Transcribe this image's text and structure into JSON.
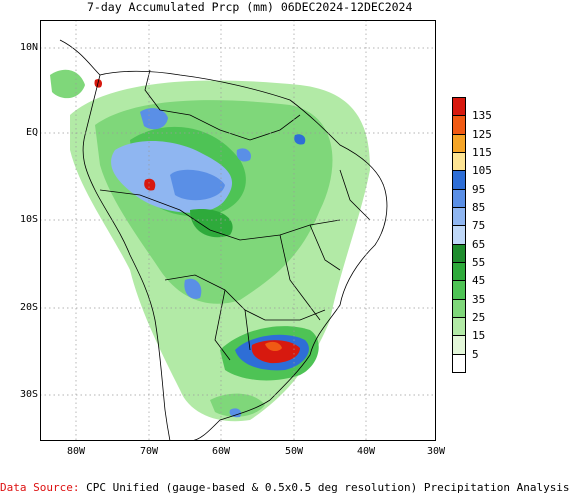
{
  "title": "7-day Accumulated Prcp (mm) 06DEC2024-12DEC2024",
  "map": {
    "lat_labels": [
      "10N",
      "EQ",
      "10S",
      "20S",
      "30S"
    ],
    "lon_labels": [
      "80W",
      "70W",
      "60W",
      "50W",
      "40W",
      "30W"
    ]
  },
  "legend": {
    "items": [
      {
        "label": "135",
        "color": "#d7190f"
      },
      {
        "label": "125",
        "color": "#f05a14"
      },
      {
        "label": "115",
        "color": "#f5a528"
      },
      {
        "label": "105",
        "color": "#fde494"
      },
      {
        "label": "95",
        "color": "#2e6ed6"
      },
      {
        "label": "85",
        "color": "#5a8fe6"
      },
      {
        "label": "75",
        "color": "#8fb6f1"
      },
      {
        "label": "65",
        "color": "#bfd8f8"
      },
      {
        "label": "55",
        "color": "#1e8c2d"
      },
      {
        "label": "45",
        "color": "#2eaa3b"
      },
      {
        "label": "35",
        "color": "#4ec355"
      },
      {
        "label": "25",
        "color": "#7fd77a"
      },
      {
        "label": "15",
        "color": "#b2eaa6"
      },
      {
        "label": "5",
        "color": "#e3f7d9"
      },
      {
        "label": "",
        "color": "#ffffff"
      }
    ]
  },
  "footer": {
    "source_label": "Data Source:",
    "source_text": "CPC Unified (gauge-based & 0.5x0.5 deg resolution) Precipitation Analysis"
  }
}
